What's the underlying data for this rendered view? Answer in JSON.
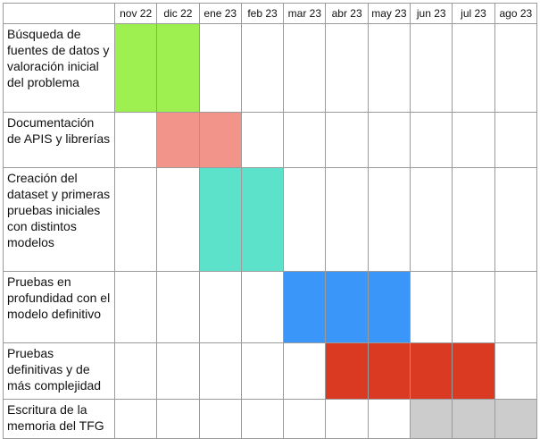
{
  "months": [
    "nov 22",
    "dic 22",
    "ene 23",
    "feb 23",
    "mar 23",
    "abr 23",
    "may 23",
    "jun 23",
    "jul 23",
    "ago 23"
  ],
  "tasks": [
    {
      "label": "Búsqueda de fuentes de datos y valoración inicial del problema",
      "start": 0,
      "end": 1,
      "color": "#9df04f"
    },
    {
      "label": "Documentación de APIS y librerías",
      "start": 1,
      "end": 2,
      "color": "#f2948a"
    },
    {
      "label": "Creación del dataset y primeras pruebas iniciales con distintos modelos",
      "start": 2,
      "end": 3,
      "color": "#5ce1cb"
    },
    {
      "label": "Pruebas en profundidad con el modelo definitivo",
      "start": 4,
      "end": 6,
      "color": "#3a96f9"
    },
    {
      "label": "Pruebas definitivas y de más complejidad",
      "start": 5,
      "end": 8,
      "color": "#da3a22"
    },
    {
      "label": "Escritura de la memoria del TFG",
      "start": 7,
      "end": 9,
      "color": "#cccccc"
    }
  ]
}
